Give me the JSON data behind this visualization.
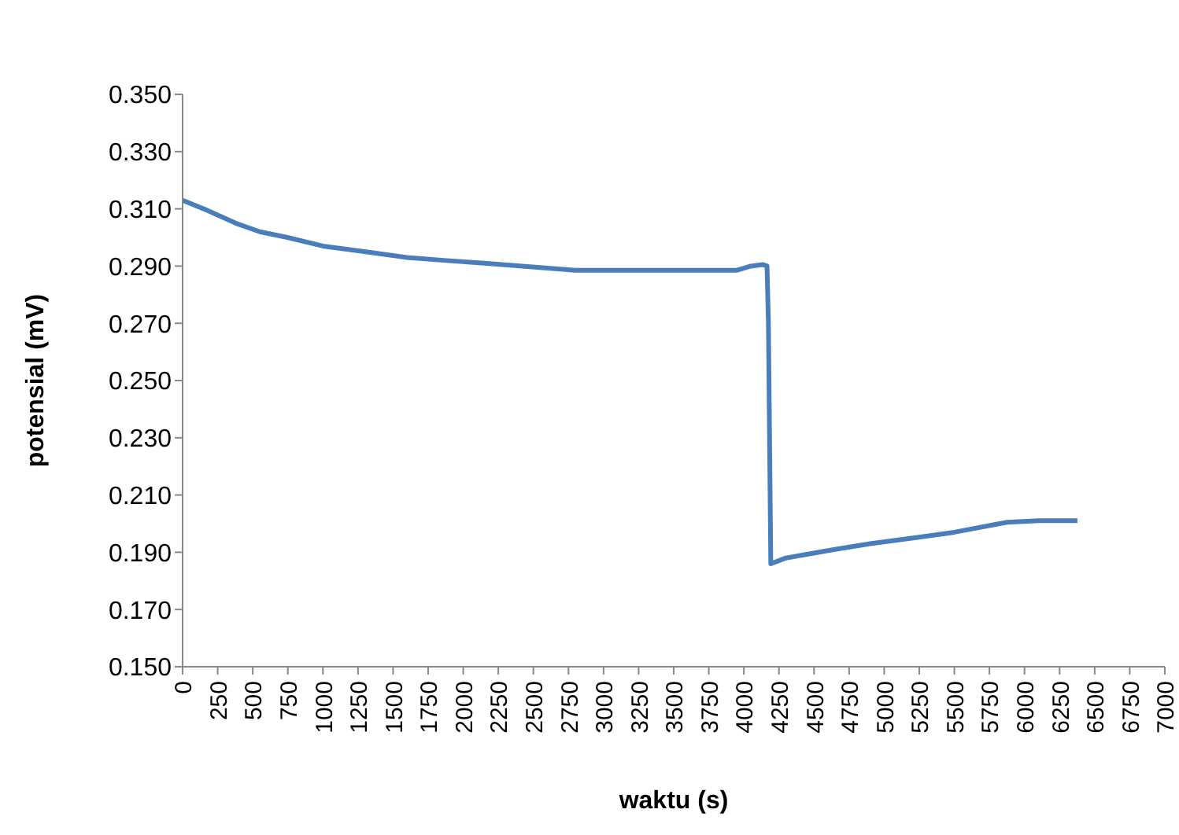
{
  "chart_data": {
    "type": "line",
    "xlabel": "waktu (s)",
    "ylabel": "potensial (mV)",
    "series": [
      {
        "color": "#4a7ebb",
        "x": [
          0,
          150,
          378,
          550,
          747,
          1000,
          1305,
          1600,
          1862,
          2150,
          2420,
          2798,
          3300,
          3947,
          4050,
          4136,
          4165,
          4175,
          4185,
          4192,
          4300,
          4649,
          4900,
          5206,
          5500,
          5875,
          6100,
          6377
        ],
        "values": [
          0.313,
          0.31,
          0.305,
          0.302,
          0.3,
          0.297,
          0.295,
          0.293,
          0.292,
          0.291,
          0.29,
          0.2885,
          0.2885,
          0.2885,
          0.29,
          0.2905,
          0.29,
          0.27,
          0.22,
          0.186,
          0.188,
          0.191,
          0.193,
          0.195,
          0.197,
          0.2005,
          0.201,
          0.201
        ]
      }
    ],
    "xlim": [
      0,
      7000
    ],
    "xticks": [
      0,
      250,
      500,
      750,
      1000,
      1250,
      1500,
      1750,
      2000,
      2250,
      2500,
      2750,
      3000,
      3250,
      3500,
      3750,
      4000,
      4250,
      4500,
      4750,
      5000,
      5250,
      5500,
      5750,
      6000,
      6250,
      6500,
      6750,
      7000
    ],
    "ylim": [
      0.15,
      0.35
    ],
    "yticks": [
      {
        "value": 0.15,
        "label": "0.150"
      },
      {
        "value": 0.17,
        "label": "0.170"
      },
      {
        "value": 0.19,
        "label": "0.190"
      },
      {
        "value": 0.21,
        "label": "0.210"
      },
      {
        "value": 0.23,
        "label": "0.230"
      },
      {
        "value": 0.25,
        "label": "0.250"
      },
      {
        "value": 0.27,
        "label": "0.270"
      },
      {
        "value": 0.29,
        "label": "0.290"
      },
      {
        "value": 0.31,
        "label": "0.310"
      },
      {
        "value": 0.33,
        "label": "0.330"
      },
      {
        "value": 0.35,
        "label": "0.350"
      }
    ],
    "marker": "none",
    "line_style": "solid"
  }
}
